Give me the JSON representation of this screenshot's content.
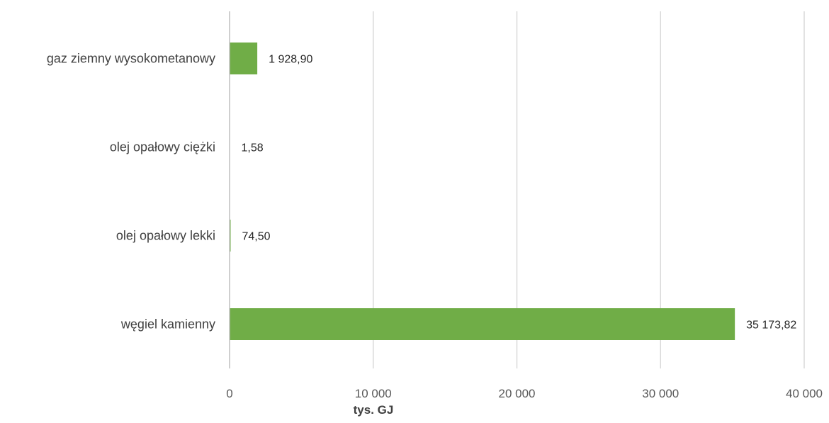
{
  "chart_data": {
    "type": "bar",
    "orientation": "horizontal",
    "title": "",
    "categories": [
      "gaz ziemny wysokometanowy",
      "olej opałowy ciężki",
      "olej opałowy lekki",
      "węgiel kamienny"
    ],
    "values": [
      1928.9,
      1.58,
      74.5,
      35173.82
    ],
    "data_labels": [
      "1 928,90",
      "1,58",
      "74,50",
      "35 173,82"
    ],
    "xlabel": "tys. GJ",
    "ylabel": "",
    "xlim": [
      0,
      40000
    ],
    "ticks": [
      0,
      10000,
      20000,
      30000,
      40000
    ],
    "tick_labels": [
      "0",
      "10 000",
      "20 000",
      "30 000",
      "40 000"
    ],
    "grid": true,
    "legend": "none",
    "colors": {
      "bar": "#70ad47",
      "grid": "#d9d9d9",
      "axis": "#bfbfbf"
    }
  }
}
